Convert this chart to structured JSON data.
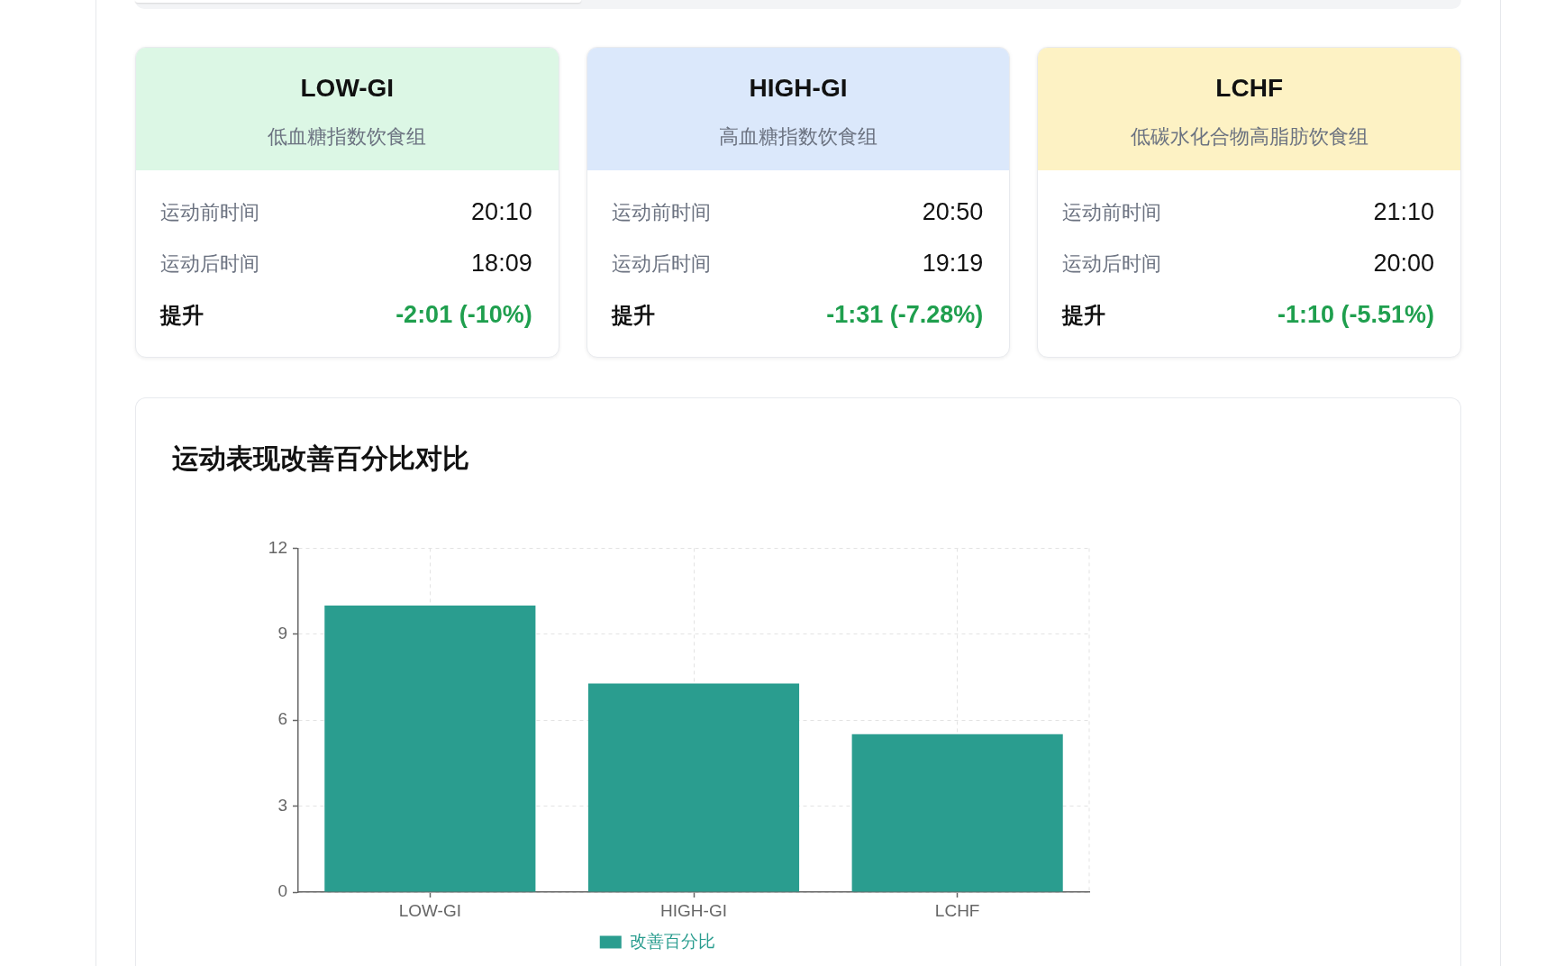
{
  "chart_data": [
    {
      "type": "other",
      "title": "LOW-GI",
      "subtitle": "低血糖指数饮食组",
      "annotations": [
        "运动前时间",
        "20:10",
        "运动后时间",
        "18:09",
        "提升",
        "-2:01 (-10%)"
      ]
    },
    {
      "type": "other",
      "title": "HIGH-GI",
      "subtitle": "高血糖指数饮食组",
      "annotations": [
        "运动前时间",
        "20:50",
        "运动后时间",
        "19:19",
        "提升",
        "-1:31 (-7.28%)"
      ]
    },
    {
      "type": "other",
      "title": "LCHF",
      "subtitle": "低碳水化合物高脂肪饮食组",
      "annotations": [
        "运动前时间",
        "21:10",
        "运动后时间",
        "20:00",
        "提升",
        "-1:10 (-5.51%)"
      ]
    },
    {
      "type": "bar",
      "title": "运动表现改善百分比对比",
      "categories": [
        "LOW-GI",
        "HIGH-GI",
        "LCHF"
      ],
      "series": [
        {
          "name": "改善百分比",
          "color": "#2a9d8f",
          "values": [
            10,
            7.28,
            5.51
          ]
        }
      ],
      "ylim": [
        0,
        12
      ],
      "yticks": [
        0,
        3,
        6,
        9,
        12
      ],
      "grid": true,
      "legend": "bottom"
    }
  ]
}
